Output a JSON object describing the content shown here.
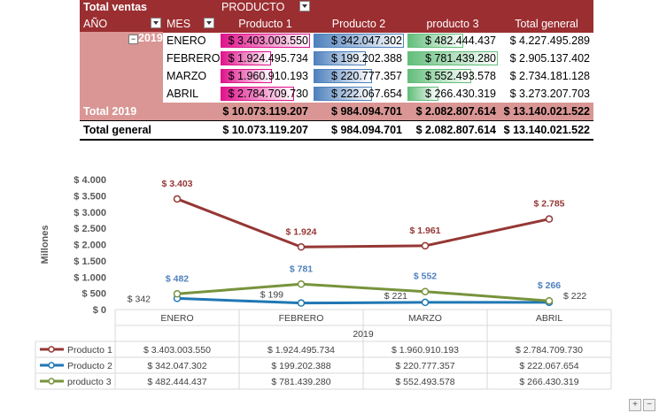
{
  "pivot": {
    "title": "Total ventas",
    "field": "PRODUCTO",
    "col_year": "AÑO",
    "col_month": "MES",
    "headers": [
      "Producto 1",
      "Producto 2",
      "producto 3",
      "Total general"
    ],
    "year": "2019",
    "rows": [
      {
        "month": "ENERO",
        "values": [
          "$ 3.403.003.550",
          "$ 342.047.302",
          "$ 482.444.437",
          "$ 4.227.495.289"
        ],
        "p1": 3403.00355,
        "p2": 342.047302,
        "p3": 482.444437
      },
      {
        "month": "FEBRERO",
        "values": [
          "$ 1.924.495.734",
          "$ 199.202.388",
          "$ 781.439.280",
          "$ 2.905.137.402"
        ],
        "p1": 1924.495734,
        "p2": 199.202388,
        "p3": 781.43928
      },
      {
        "month": "MARZO",
        "values": [
          "$ 1.960.910.193",
          "$ 220.777.357",
          "$ 552.493.578",
          "$ 2.734.181.128"
        ],
        "p1": 1960.910193,
        "p2": 220.777357,
        "p3": 552.493578
      },
      {
        "month": "ABRIL",
        "values": [
          "$ 2.784.709.730",
          "$ 222.067.654",
          "$ 266.430.319",
          "$ 3.273.207.703"
        ],
        "p1": 2784.70973,
        "p2": 222.067654,
        "p3": 266.430319
      }
    ],
    "subtotal": {
      "label": "Total 2019",
      "values": [
        "$ 10.073.119.207",
        "$ 984.094.701",
        "$ 2.082.807.614",
        "$ 13.140.021.522"
      ]
    },
    "grand": {
      "label": "Total general",
      "values": [
        "$ 10.073.119.207",
        "$ 984.094.701",
        "$ 2.082.807.614",
        "$ 13.140.021.522"
      ]
    },
    "colors": {
      "header": "#9b2e31",
      "year_fill": "#d99694",
      "p1_bar": "#e0148c",
      "p2_bar": "#4f81bd",
      "p3_bar": "#63be7b"
    }
  },
  "chart_data": {
    "type": "line",
    "categories": [
      "ENERO",
      "FEBRERO",
      "MARZO",
      "ABRIL"
    ],
    "group_label": "2019",
    "ylabel": "Millones",
    "ylim": [
      0,
      4000
    ],
    "yticks": [
      0,
      500,
      1000,
      1500,
      2000,
      2500,
      3000,
      3500,
      4000
    ],
    "ytick_labels": [
      "$ 0",
      "$ 500",
      "$ 1.000",
      "$ 1.500",
      "$ 2.000",
      "$ 2.500",
      "$ 3.000",
      "$ 3.500",
      "$ 4.000"
    ],
    "grid": false,
    "legend": "data-table",
    "series": [
      {
        "name": "Producto 1",
        "color": "#953735",
        "values": [
          3403.00355,
          1924.495734,
          1960.910193,
          2784.70973
        ],
        "labels": [
          "$ 3.403",
          "$ 1.924",
          "$ 1.961",
          "$ 2.785"
        ],
        "table": [
          "$ 3.403.003.550",
          "$ 1.924.495.734",
          "$ 1.960.910.193",
          "$ 2.784.709.730"
        ]
      },
      {
        "name": "Producto 2",
        "color": "#1f77b4",
        "values": [
          342.047302,
          199.202388,
          220.777357,
          222.067654
        ],
        "labels": [
          "$ 342",
          "$ 199",
          "$ 221",
          "$ 222"
        ],
        "table": [
          "$ 342.047.302",
          "$ 199.202.388",
          "$ 220.777.357",
          "$ 222.067.654"
        ]
      },
      {
        "name": "producto 3",
        "color": "#77933c",
        "values": [
          482.444437,
          781.43928,
          552.493578,
          266.430319
        ],
        "labels": [
          "$ 482",
          "$ 781",
          "$ 552",
          "$ 266"
        ],
        "table": [
          "$ 482.444.437",
          "$ 781.439.280",
          "$ 552.493.578",
          "$ 266.430.319"
        ]
      }
    ]
  }
}
